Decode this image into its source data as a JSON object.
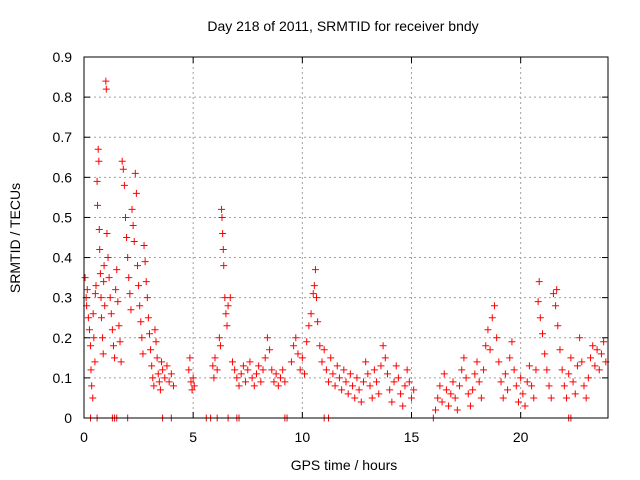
{
  "chart_data": {
    "type": "scatter",
    "title": "Day 218 of 2011, SRMTID for receiver bndy",
    "xlabel": "GPS time / hours",
    "ylabel": "SRMTID / TECUs",
    "xlim": [
      0,
      24
    ],
    "ylim": [
      0,
      0.9
    ],
    "xticks": [
      0,
      5,
      10,
      15,
      20
    ],
    "xtick_labels": [
      "0",
      "5",
      "10",
      "15",
      "20"
    ],
    "yticks": [
      0,
      0.1,
      0.2,
      0.3,
      0.4,
      0.5,
      0.6,
      0.7,
      0.8,
      0.9
    ],
    "ytick_labels": [
      "0",
      "0.1",
      "0.2",
      "0.3",
      "0.4",
      "0.5",
      "0.6",
      "0.7",
      "0.8",
      "0.9"
    ],
    "grid": true,
    "marker": "+",
    "series": [
      {
        "name": "SRMTID",
        "color": "#ff0000",
        "points": [
          [
            0.05,
            0.35
          ],
          [
            0.1,
            0.3
          ],
          [
            0.12,
            0.28
          ],
          [
            0.15,
            0.32
          ],
          [
            0.2,
            0.25
          ],
          [
            0.25,
            0.22
          ],
          [
            0.3,
            0.18
          ],
          [
            0.32,
            0.12
          ],
          [
            0.35,
            0.08
          ],
          [
            0.4,
            0.05
          ],
          [
            0.42,
            0.26
          ],
          [
            0.45,
            0.2
          ],
          [
            0.5,
            0.14
          ],
          [
            0.52,
            0.31
          ],
          [
            0.55,
            0.33
          ],
          [
            0.6,
            0.59
          ],
          [
            0.62,
            0.53
          ],
          [
            0.65,
            0.67
          ],
          [
            0.68,
            0.64
          ],
          [
            0.7,
            0.47
          ],
          [
            0.72,
            0.42
          ],
          [
            0.75,
            0.36
          ],
          [
            0.78,
            0.3
          ],
          [
            0.8,
            0.25
          ],
          [
            0.85,
            0.2
          ],
          [
            0.88,
            0.16
          ],
          [
            0.9,
            0.34
          ],
          [
            0.92,
            0.38
          ],
          [
            0.95,
            0.28
          ],
          [
            1.0,
            0.84
          ],
          [
            1.02,
            0.82
          ],
          [
            1.05,
            0.46
          ],
          [
            1.1,
            0.4
          ],
          [
            1.15,
            0.35
          ],
          [
            1.2,
            0.3
          ],
          [
            1.25,
            0.26
          ],
          [
            1.3,
            0.22
          ],
          [
            1.35,
            0.18
          ],
          [
            1.4,
            0.15
          ],
          [
            1.45,
            0.32
          ],
          [
            1.5,
            0.37
          ],
          [
            1.55,
            0.29
          ],
          [
            1.6,
            0.23
          ],
          [
            1.65,
            0.19
          ],
          [
            1.7,
            0.14
          ],
          [
            1.75,
            0.64
          ],
          [
            1.8,
            0.62
          ],
          [
            1.85,
            0.58
          ],
          [
            1.9,
            0.5
          ],
          [
            1.95,
            0.45
          ],
          [
            2.0,
            0.4
          ],
          [
            2.05,
            0.35
          ],
          [
            2.1,
            0.31
          ],
          [
            2.15,
            0.27
          ],
          [
            2.2,
            0.52
          ],
          [
            2.25,
            0.48
          ],
          [
            2.3,
            0.44
          ],
          [
            2.35,
            0.61
          ],
          [
            2.4,
            0.56
          ],
          [
            2.45,
            0.38
          ],
          [
            2.5,
            0.33
          ],
          [
            2.55,
            0.28
          ],
          [
            2.6,
            0.24
          ],
          [
            2.65,
            0.2
          ],
          [
            2.7,
            0.16
          ],
          [
            2.75,
            0.43
          ],
          [
            2.8,
            0.39
          ],
          [
            2.85,
            0.34
          ],
          [
            2.9,
            0.3
          ],
          [
            2.95,
            0.25
          ],
          [
            3.0,
            0.21
          ],
          [
            3.05,
            0.17
          ],
          [
            3.1,
            0.13
          ],
          [
            3.15,
            0.1
          ],
          [
            3.2,
            0.08
          ],
          [
            3.25,
            0.22
          ],
          [
            3.3,
            0.19
          ],
          [
            3.35,
            0.15
          ],
          [
            3.4,
            0.11
          ],
          [
            3.45,
            0.09
          ],
          [
            3.5,
            0.07
          ],
          [
            3.55,
            0.14
          ],
          [
            3.6,
            0.12
          ],
          [
            3.7,
            0.1
          ],
          [
            3.8,
            0.13
          ],
          [
            3.9,
            0.09
          ],
          [
            4.0,
            0.11
          ],
          [
            4.1,
            0.08
          ],
          [
            0.3,
            0.0
          ],
          [
            0.6,
            0.0
          ],
          [
            1.3,
            0.0
          ],
          [
            1.4,
            0.0
          ],
          [
            1.5,
            0.0
          ],
          [
            2.0,
            0.0
          ],
          [
            3.6,
            0.0
          ],
          [
            4.0,
            0.0
          ],
          [
            4.8,
            0.12
          ],
          [
            4.85,
            0.15
          ],
          [
            4.9,
            0.09
          ],
          [
            4.95,
            0.07
          ],
          [
            5.0,
            0.1
          ],
          [
            5.05,
            0.08
          ],
          [
            5.9,
            0.13
          ],
          [
            5.95,
            0.1
          ],
          [
            6.0,
            0.15
          ],
          [
            6.1,
            0.12
          ],
          [
            6.2,
            0.2
          ],
          [
            6.25,
            0.18
          ],
          [
            6.3,
            0.52
          ],
          [
            6.32,
            0.5
          ],
          [
            6.35,
            0.46
          ],
          [
            6.38,
            0.42
          ],
          [
            6.4,
            0.38
          ],
          [
            6.45,
            0.3
          ],
          [
            6.5,
            0.26
          ],
          [
            6.55,
            0.23
          ],
          [
            6.6,
            0.28
          ],
          [
            6.7,
            0.3
          ],
          [
            6.8,
            0.14
          ],
          [
            6.9,
            0.12
          ],
          [
            7.0,
            0.1
          ],
          [
            7.1,
            0.08
          ],
          [
            7.2,
            0.11
          ],
          [
            7.3,
            0.13
          ],
          [
            7.4,
            0.09
          ],
          [
            7.5,
            0.12
          ],
          [
            7.6,
            0.14
          ],
          [
            7.7,
            0.1
          ],
          [
            7.8,
            0.08
          ],
          [
            7.9,
            0.11
          ],
          [
            8.0,
            0.13
          ],
          [
            8.1,
            0.09
          ],
          [
            8.2,
            0.12
          ],
          [
            8.3,
            0.15
          ],
          [
            8.4,
            0.2
          ],
          [
            8.5,
            0.17
          ],
          [
            8.6,
            0.12
          ],
          [
            8.7,
            0.09
          ],
          [
            8.8,
            0.11
          ],
          [
            8.9,
            0.08
          ],
          [
            9.0,
            0.1
          ],
          [
            9.1,
            0.12
          ],
          [
            9.2,
            0.09
          ],
          [
            5.6,
            0.0
          ],
          [
            5.8,
            0.0
          ],
          [
            6.1,
            0.0
          ],
          [
            6.6,
            0.0
          ],
          [
            7.0,
            0.0
          ],
          [
            7.1,
            0.0
          ],
          [
            9.2,
            0.0
          ],
          [
            9.3,
            0.0
          ],
          [
            9.5,
            0.14
          ],
          [
            9.6,
            0.18
          ],
          [
            9.7,
            0.2
          ],
          [
            9.8,
            0.16
          ],
          [
            9.9,
            0.12
          ],
          [
            10.0,
            0.15
          ],
          [
            10.1,
            0.11
          ],
          [
            10.2,
            0.19
          ],
          [
            10.3,
            0.23
          ],
          [
            10.4,
            0.26
          ],
          [
            10.5,
            0.31
          ],
          [
            10.55,
            0.33
          ],
          [
            10.6,
            0.37
          ],
          [
            10.65,
            0.3
          ],
          [
            10.7,
            0.24
          ],
          [
            10.8,
            0.18
          ],
          [
            10.9,
            0.14
          ],
          [
            11.0,
            0.17
          ],
          [
            11.1,
            0.12
          ],
          [
            11.2,
            0.09
          ],
          [
            11.3,
            0.15
          ],
          [
            11.4,
            0.11
          ],
          [
            11.5,
            0.08
          ],
          [
            11.6,
            0.13
          ],
          [
            11.7,
            0.1
          ],
          [
            11.8,
            0.07
          ],
          [
            11.9,
            0.12
          ],
          [
            12.0,
            0.09
          ],
          [
            12.1,
            0.06
          ],
          [
            12.2,
            0.11
          ],
          [
            12.3,
            0.08
          ],
          [
            12.4,
            0.05
          ],
          [
            12.5,
            0.1
          ],
          [
            12.6,
            0.07
          ],
          [
            12.7,
            0.04
          ],
          [
            12.8,
            0.09
          ],
          [
            12.9,
            0.14
          ],
          [
            13.0,
            0.11
          ],
          [
            13.1,
            0.08
          ],
          [
            13.2,
            0.05
          ],
          [
            13.3,
            0.12
          ],
          [
            13.4,
            0.09
          ],
          [
            13.5,
            0.06
          ],
          [
            13.6,
            0.13
          ],
          [
            13.7,
            0.18
          ],
          [
            13.8,
            0.15
          ],
          [
            13.9,
            0.11
          ],
          [
            14.0,
            0.07
          ],
          [
            14.1,
            0.04
          ],
          [
            14.2,
            0.09
          ],
          [
            14.3,
            0.13
          ],
          [
            14.4,
            0.1
          ],
          [
            14.5,
            0.06
          ],
          [
            14.6,
            0.03
          ],
          [
            14.7,
            0.08
          ],
          [
            14.8,
            0.12
          ],
          [
            14.9,
            0.09
          ],
          [
            15.0,
            0.05
          ],
          [
            15.1,
            0.07
          ],
          [
            11.0,
            0.0
          ],
          [
            11.2,
            0.0
          ],
          [
            16.0,
            0.0
          ],
          [
            16.1,
            0.02
          ],
          [
            16.2,
            0.05
          ],
          [
            16.3,
            0.08
          ],
          [
            16.4,
            0.04
          ],
          [
            16.5,
            0.11
          ],
          [
            16.6,
            0.07
          ],
          [
            16.7,
            0.03
          ],
          [
            16.8,
            0.06
          ],
          [
            16.9,
            0.09
          ],
          [
            17.0,
            0.05
          ],
          [
            17.1,
            0.02
          ],
          [
            17.2,
            0.08
          ],
          [
            17.3,
            0.12
          ],
          [
            17.4,
            0.15
          ],
          [
            17.5,
            0.1
          ],
          [
            17.6,
            0.06
          ],
          [
            17.7,
            0.03
          ],
          [
            17.8,
            0.07
          ],
          [
            17.9,
            0.11
          ],
          [
            18.0,
            0.14
          ],
          [
            18.1,
            0.09
          ],
          [
            18.2,
            0.05
          ],
          [
            18.3,
            0.12
          ],
          [
            18.4,
            0.18
          ],
          [
            18.5,
            0.22
          ],
          [
            18.6,
            0.17
          ],
          [
            18.7,
            0.25
          ],
          [
            18.8,
            0.28
          ],
          [
            18.9,
            0.2
          ],
          [
            19.0,
            0.14
          ],
          [
            19.1,
            0.09
          ],
          [
            19.2,
            0.05
          ],
          [
            19.3,
            0.11
          ],
          [
            19.4,
            0.07
          ],
          [
            19.5,
            0.15
          ],
          [
            19.6,
            0.19
          ],
          [
            19.7,
            0.12
          ],
          [
            19.8,
            0.08
          ],
          [
            19.9,
            0.04
          ],
          [
            20.0,
            0.1
          ],
          [
            20.1,
            0.06
          ],
          [
            20.2,
            0.03
          ],
          [
            20.3,
            0.09
          ],
          [
            20.4,
            0.13
          ],
          [
            20.5,
            0.08
          ],
          [
            20.6,
            0.05
          ],
          [
            20.7,
            0.12
          ],
          [
            20.8,
            0.29
          ],
          [
            20.85,
            0.34
          ],
          [
            20.9,
            0.25
          ],
          [
            21.0,
            0.21
          ],
          [
            21.1,
            0.16
          ],
          [
            21.2,
            0.12
          ],
          [
            21.3,
            0.08
          ],
          [
            21.4,
            0.05
          ],
          [
            21.5,
            0.31
          ],
          [
            21.6,
            0.28
          ],
          [
            21.65,
            0.32
          ],
          [
            21.7,
            0.23
          ],
          [
            21.8,
            0.17
          ],
          [
            21.9,
            0.12
          ],
          [
            22.0,
            0.08
          ],
          [
            22.1,
            0.05
          ],
          [
            22.2,
            0.11
          ],
          [
            22.3,
            0.15
          ],
          [
            22.4,
            0.09
          ],
          [
            22.5,
            0.06
          ],
          [
            22.6,
            0.13
          ],
          [
            22.7,
            0.2
          ],
          [
            22.8,
            0.14
          ],
          [
            22.9,
            0.08
          ],
          [
            23.0,
            0.05
          ],
          [
            23.1,
            0.1
          ],
          [
            23.2,
            0.15
          ],
          [
            23.3,
            0.18
          ],
          [
            23.4,
            0.13
          ],
          [
            23.5,
            0.17
          ],
          [
            23.6,
            0.12
          ],
          [
            23.7,
            0.16
          ],
          [
            23.8,
            0.19
          ],
          [
            23.9,
            0.14
          ],
          [
            22.2,
            0.0
          ],
          [
            22.3,
            0.0
          ]
        ]
      }
    ]
  }
}
